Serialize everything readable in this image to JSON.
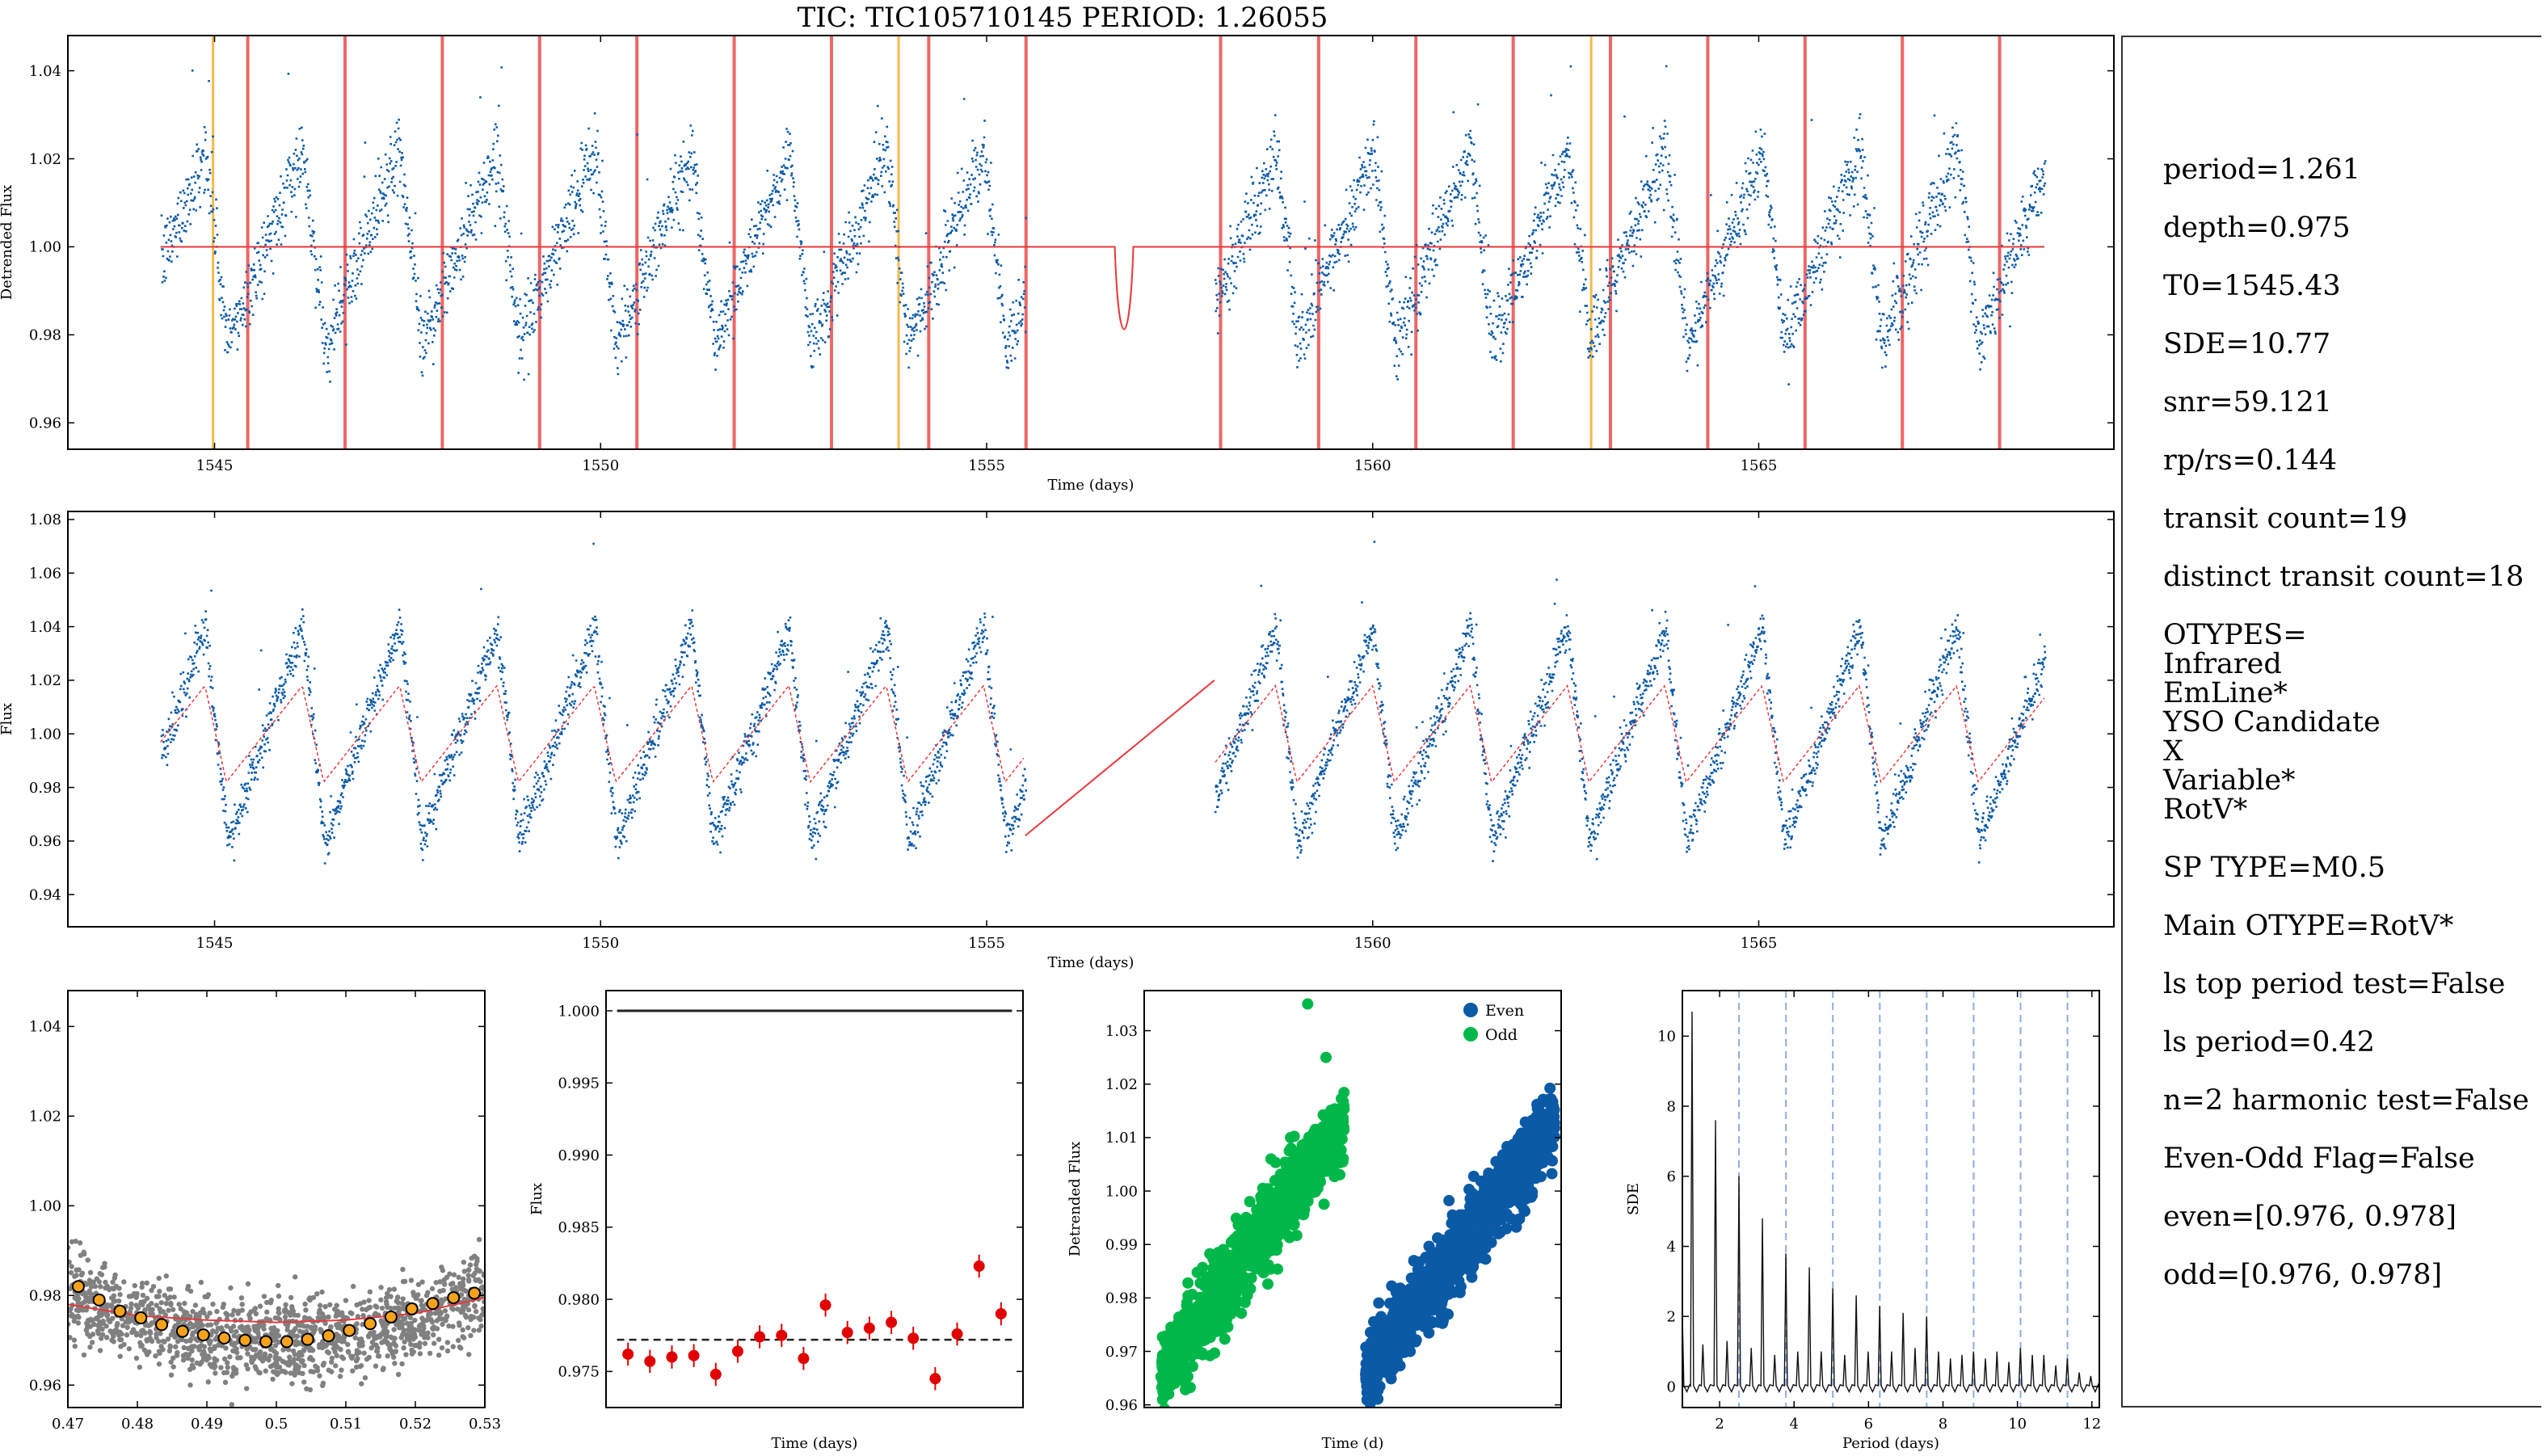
{
  "title": "TIC: TIC105710145 PERIOD: 1.26055",
  "side_panel": {
    "lines": [
      {
        "text": "period=1.261",
        "gap": true
      },
      {
        "text": "depth=0.975",
        "gap": true
      },
      {
        "text": "T0=1545.43",
        "gap": true
      },
      {
        "text": "SDE=10.77",
        "gap": true
      },
      {
        "text": "snr=59.121",
        "gap": true
      },
      {
        "text": "rp/rs=0.144",
        "gap": true
      },
      {
        "text": "transit count=19",
        "gap": true
      },
      {
        "text": "distinct transit count=18",
        "gap": true
      },
      {
        "text": "OTYPES=",
        "gap": true
      },
      {
        "text": "Infrared",
        "gap": false
      },
      {
        "text": "EmLine*",
        "gap": false
      },
      {
        "text": "YSO Candidate",
        "gap": false
      },
      {
        "text": "X",
        "gap": false
      },
      {
        "text": "Variable*",
        "gap": false
      },
      {
        "text": "RotV*",
        "gap": false
      },
      {
        "text": "SP TYPE=M0.5",
        "gap": true
      },
      {
        "text": "Main OTYPE=RotV*",
        "gap": true
      },
      {
        "text": "ls top period test=False",
        "gap": true
      },
      {
        "text": "ls period=0.42",
        "gap": true
      },
      {
        "text": "n=2 harmonic test=False",
        "gap": true
      },
      {
        "text": "Even-Odd Flag=False",
        "gap": true
      },
      {
        "text": "even=[0.976, 0.978]",
        "gap": true
      },
      {
        "text": "odd=[0.976, 0.978]",
        "gap": true
      }
    ]
  },
  "colors": {
    "data": "#0b5aa6",
    "model": "#e8393c",
    "transit_marker": "#ee6666",
    "single_marker": "#f7b94a",
    "odd": "#00b84a",
    "even": "#0b5aa6",
    "sde_line": "#8aaee0",
    "binned": "#f7a21b",
    "raw": "#808080"
  },
  "chart_data": [
    {
      "id": "detrended",
      "type": "scatter",
      "ylabel": "Detrended Flux",
      "xlabel": "Time (days)",
      "xlim": [
        1543.1,
        1569.6
      ],
      "ylim": [
        0.954,
        1.048
      ],
      "xticks": [
        1545,
        1550,
        1555,
        1560,
        1565
      ],
      "yticks": [
        0.96,
        0.98,
        1.0,
        1.02,
        1.04
      ],
      "segments": [
        [
          1544.3,
          1555.5
        ],
        [
          1557.95,
          1568.7
        ]
      ],
      "rotation_period": 1.2605,
      "rotation_phase": 1545.43,
      "amplitude": 0.022,
      "transit_times": [
        1545.43,
        1546.69,
        1547.95,
        1549.21,
        1550.47,
        1551.73,
        1552.99,
        1554.25,
        1555.51,
        1558.03,
        1559.3,
        1560.56,
        1561.82,
        1563.08,
        1564.34,
        1565.6,
        1566.86,
        1568.12
      ],
      "single_event_times": [
        1544.98,
        1553.86,
        1562.83
      ],
      "model_baseline": 1.0,
      "model_depth": 0.975,
      "model_dip_center": 1556.78,
      "model_dip_width": 0.12
    },
    {
      "id": "raw_flux",
      "type": "scatter",
      "ylabel": "Flux",
      "xlabel": "Time (days)",
      "xlim": [
        1543.1,
        1569.6
      ],
      "ylim": [
        0.928,
        1.083
      ],
      "xticks": [
        1545,
        1550,
        1555,
        1560,
        1565
      ],
      "yticks": [
        0.94,
        0.96,
        0.98,
        1.0,
        1.02,
        1.04,
        1.06,
        1.08
      ],
      "segments": [
        [
          1544.3,
          1555.5
        ],
        [
          1557.95,
          1568.7
        ]
      ],
      "rotation_period": 1.2605,
      "amplitude": 0.04,
      "trend_amplitude": 0.018,
      "gap_line": [
        [
          1555.5,
          0.962
        ],
        [
          1557.95,
          1.02
        ]
      ]
    },
    {
      "id": "phase_fold",
      "type": "scatter",
      "xlim": [
        0.47,
        0.53
      ],
      "ylim": [
        0.955,
        1.048
      ],
      "xticks": [
        0.47,
        0.48,
        0.49,
        0.5,
        0.51,
        0.52,
        0.53
      ],
      "yticks": [
        0.96,
        0.98,
        1.0,
        1.02,
        1.04
      ],
      "binned_x": [
        0.4715,
        0.4745,
        0.4775,
        0.4805,
        0.4835,
        0.4865,
        0.4895,
        0.4925,
        0.4955,
        0.4985,
        0.5015,
        0.5045,
        0.5075,
        0.5105,
        0.5135,
        0.5165,
        0.5195,
        0.5225,
        0.5255,
        0.5285
      ],
      "binned_y": [
        0.982,
        0.979,
        0.9765,
        0.975,
        0.9735,
        0.972,
        0.9712,
        0.9705,
        0.97,
        0.9697,
        0.9697,
        0.9702,
        0.971,
        0.9722,
        0.9737,
        0.9752,
        0.977,
        0.9782,
        0.9795,
        0.9805
      ],
      "model_x": [
        0.47,
        0.48,
        0.49,
        0.5,
        0.51,
        0.52,
        0.53
      ],
      "model_y": [
        0.978,
        0.9755,
        0.9745,
        0.974,
        0.9745,
        0.976,
        0.9795
      ]
    },
    {
      "id": "transit_depths",
      "type": "scatter",
      "ylabel": "Flux",
      "xlabel": "Time (days)",
      "ylim": [
        0.9725,
        1.0014
      ],
      "yticks": [
        0.975,
        0.98,
        0.985,
        0.99,
        0.995,
        1.0
      ],
      "values": [
        0.9762,
        0.9757,
        0.976,
        0.9761,
        0.9748,
        0.9764,
        0.9774,
        0.9775,
        0.9759,
        0.9796,
        0.9777,
        0.978,
        0.9784,
        0.9773,
        0.9745,
        0.9776,
        0.9823,
        0.979
      ],
      "error": 0.0008,
      "mean_depth": 0.9772,
      "baseline": 1.0
    },
    {
      "id": "even_odd",
      "type": "scatter",
      "ylabel": "Detrended Flux",
      "xlabel": "Time (d)",
      "ylim": [
        0.9595,
        1.0375
      ],
      "yticks": [
        0.96,
        0.97,
        0.98,
        0.99,
        1.0,
        1.01,
        1.02,
        1.03
      ],
      "legend": [
        "Even",
        "Odd"
      ],
      "legend_position": "top-right",
      "odd_range": [
        0.966,
        1.013
      ],
      "even_range": [
        0.966,
        1.013
      ],
      "odd_outliers": [
        0.991,
        0.993,
        1.006,
        1.0075,
        1.035,
        1.025
      ],
      "even_outliers": [
        0.977,
        0.981
      ]
    },
    {
      "id": "sde_periodogram",
      "type": "line",
      "ylabel": "SDE",
      "xlabel": "Period (days)",
      "xlim": [
        1.0,
        12.2
      ],
      "ylim": [
        -0.6,
        11.3
      ],
      "xticks": [
        2,
        4,
        6,
        8,
        10,
        12
      ],
      "yticks": [
        0,
        2,
        4,
        6,
        8,
        10
      ],
      "harmonic_lines": [
        2.521,
        3.782,
        5.042,
        6.303,
        7.563,
        8.824,
        10.084,
        11.345
      ],
      "peak_periods": [
        1.0,
        1.26,
        1.55,
        1.89,
        2.2,
        2.52,
        2.85,
        3.15,
        3.48,
        3.78,
        4.1,
        4.41,
        4.73,
        5.04,
        5.36,
        5.67,
        5.99,
        6.3,
        6.62,
        6.93,
        7.25,
        7.56,
        7.88,
        8.2,
        8.51,
        8.82,
        9.14,
        9.45,
        9.77,
        10.08,
        10.4,
        10.71,
        11.03,
        11.34,
        11.66,
        11.97
      ],
      "peak_heights": [
        2.0,
        10.7,
        1.2,
        7.6,
        1.3,
        6.0,
        1.1,
        4.8,
        0.9,
        3.8,
        1.0,
        3.4,
        1.0,
        2.8,
        0.9,
        2.6,
        1.0,
        2.3,
        1.0,
        2.1,
        1.1,
        2.0,
        1.0,
        0.8,
        0.9,
        1.0,
        0.8,
        1.0,
        0.7,
        1.1,
        0.9,
        0.9,
        0.6,
        0.8,
        0.4,
        0.3
      ]
    }
  ]
}
